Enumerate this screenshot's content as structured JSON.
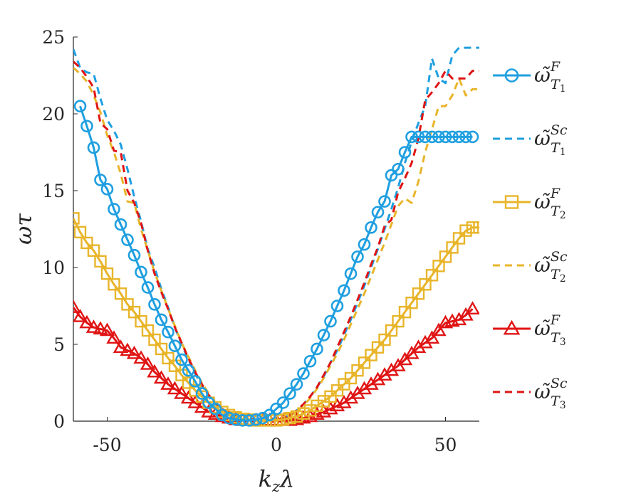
{
  "chart_data": {
    "type": "line",
    "title": "",
    "xlabel": "k_z λ",
    "xlabel_parts": {
      "main": "k",
      "sub": "z",
      "tail": "λ"
    },
    "ylabel": "ωτ",
    "xlim": [
      -60,
      60
    ],
    "ylim": [
      0,
      25
    ],
    "xticks": [
      -50,
      0,
      50
    ],
    "yticks": [
      0,
      5,
      10,
      15,
      20,
      25
    ],
    "xtick_labels": [
      "-50",
      "0",
      "50"
    ],
    "ytick_labels": [
      "0",
      "5",
      "10",
      "15",
      "20",
      "25"
    ],
    "grid": false,
    "legend_position": "right",
    "series": [
      {
        "name": "ω̃^F_{T1}",
        "label_main": "ω̃",
        "label_sup": "F",
        "label_sub": "T",
        "label_subsub": "1",
        "color": "#1f9fe0",
        "style": "solid",
        "marker": "circle",
        "x": [
          -58,
          -56,
          -54,
          -52,
          -50,
          -48,
          -46,
          -44,
          -42,
          -40,
          -38,
          -36,
          -34,
          -32,
          -30,
          -28,
          -26,
          -24,
          -22,
          -20,
          -18,
          -16,
          -14,
          -12,
          -10,
          -8,
          -6,
          -4,
          -2,
          0,
          2,
          4,
          6,
          8,
          10,
          12,
          14,
          16,
          18,
          20,
          22,
          24,
          26,
          28,
          30,
          32,
          34,
          36,
          38,
          40,
          42,
          44,
          46,
          48,
          50,
          52,
          54,
          56,
          58
        ],
        "y": [
          20.5,
          19.2,
          17.8,
          15.7,
          15.1,
          13.8,
          12.8,
          11.8,
          10.8,
          9.7,
          8.7,
          7.6,
          6.6,
          5.8,
          4.9,
          4.0,
          3.3,
          2.6,
          1.8,
          1.2,
          0.8,
          0.4,
          0.2,
          0.1,
          0.05,
          0.05,
          0.1,
          0.2,
          0.4,
          0.8,
          1.2,
          1.8,
          2.4,
          3.1,
          3.9,
          4.7,
          5.6,
          6.5,
          7.5,
          8.5,
          9.6,
          10.7,
          11.5,
          12.6,
          13.6,
          14.3,
          16.0,
          16.4,
          17.5,
          18.5,
          18.5,
          18.5,
          18.5,
          18.5,
          18.5,
          18.5,
          18.5,
          18.5,
          18.5
        ]
      },
      {
        "name": "ω̃^Sc_{T1}",
        "label_main": "ω̃",
        "label_sup": "Sc",
        "label_sub": "T",
        "label_subsub": "1",
        "color": "#1f9fe0",
        "style": "dashed",
        "marker": "none",
        "x": [
          -60,
          -58,
          -56,
          -54,
          -52,
          -50,
          -48,
          -46,
          -44,
          -42,
          -40,
          -38,
          -36,
          -34,
          -32,
          -30,
          -28,
          -26,
          -24,
          -22,
          -20,
          -18,
          -16,
          -14,
          -12,
          -10,
          -8,
          -6,
          -4,
          -2,
          0,
          2,
          4,
          6,
          8,
          10,
          12,
          14,
          16,
          18,
          20,
          22,
          24,
          26,
          28,
          30,
          32,
          34,
          36,
          38,
          40,
          42,
          44,
          46,
          48,
          50,
          52,
          54,
          56,
          58,
          60
        ],
        "y": [
          24.2,
          23.0,
          22.7,
          22.6,
          21.0,
          19.6,
          18.9,
          18.0,
          16.4,
          14.6,
          13.0,
          11.2,
          10.0,
          8.6,
          7.4,
          6.1,
          5.0,
          4.0,
          3.1,
          2.3,
          1.6,
          1.1,
          0.7,
          0.4,
          0.2,
          0.1,
          0.05,
          0.05,
          0.05,
          0.05,
          0.05,
          0.2,
          0.4,
          0.7,
          1.1,
          1.6,
          2.2,
          2.9,
          3.8,
          4.6,
          5.6,
          6.6,
          7.7,
          8.8,
          10.0,
          11.2,
          12.5,
          13.8,
          15.2,
          16.8,
          18.2,
          19.4,
          20.5,
          23.6,
          22.3,
          22.0,
          23.8,
          24.3,
          24.3,
          24.3,
          24.3
        ]
      },
      {
        "name": "ω̃^F_{T2}",
        "label_main": "ω̃",
        "label_sup": "F",
        "label_sub": "T",
        "label_subsub": "2",
        "color": "#e8b52a",
        "style": "solid",
        "marker": "square",
        "x": [
          -60,
          -58,
          -56,
          -54,
          -52,
          -50,
          -48,
          -46,
          -44,
          -42,
          -40,
          -38,
          -36,
          -34,
          -32,
          -30,
          -28,
          -26,
          -24,
          -22,
          -20,
          -18,
          -16,
          -14,
          -12,
          -10,
          -8,
          -6,
          -4,
          -2,
          0,
          2,
          4,
          6,
          8,
          10,
          12,
          14,
          16,
          18,
          20,
          22,
          24,
          26,
          28,
          30,
          32,
          34,
          36,
          38,
          40,
          42,
          44,
          46,
          48,
          50,
          52,
          54,
          56,
          58,
          60
        ],
        "y": [
          13.2,
          12.3,
          11.6,
          11.1,
          10.4,
          9.6,
          8.9,
          8.3,
          7.6,
          7.1,
          6.5,
          5.9,
          5.3,
          4.7,
          4.1,
          3.6,
          3.0,
          2.5,
          2.0,
          1.6,
          1.2,
          0.9,
          0.6,
          0.4,
          0.25,
          0.15,
          0.1,
          0.05,
          0.05,
          0.05,
          0.05,
          0.1,
          0.2,
          0.3,
          0.5,
          0.7,
          1.0,
          1.3,
          1.6,
          2.0,
          2.4,
          2.8,
          3.3,
          3.8,
          4.3,
          4.8,
          5.3,
          5.9,
          6.5,
          7.1,
          7.7,
          8.3,
          8.9,
          9.5,
          10.1,
          10.7,
          11.3,
          11.9,
          12.4,
          12.6,
          12.6
        ]
      },
      {
        "name": "ω̃^Sc_{T2}",
        "label_main": "ω̃",
        "label_sup": "Sc",
        "label_sub": "T",
        "label_subsub": "2",
        "color": "#e8b52a",
        "style": "dashed",
        "marker": "none",
        "x": [
          -60,
          -58,
          -56,
          -54,
          -52,
          -50,
          -48,
          -46,
          -44,
          -42,
          -40,
          -38,
          -36,
          -34,
          -32,
          -30,
          -28,
          -26,
          -24,
          -22,
          -20,
          -18,
          -16,
          -14,
          -12,
          -10,
          -8,
          -6,
          -4,
          -2,
          0,
          2,
          4,
          6,
          8,
          10,
          12,
          14,
          16,
          18,
          20,
          22,
          24,
          26,
          28,
          30,
          32,
          34,
          36,
          38,
          40,
          42,
          44,
          46,
          48,
          50,
          52,
          54,
          56,
          58,
          60
        ],
        "y": [
          23.0,
          22.6,
          22.1,
          21.2,
          20.1,
          18.6,
          17.5,
          16.1,
          14.3,
          14.2,
          12.5,
          11.1,
          9.7,
          8.5,
          7.3,
          6.2,
          5.1,
          4.2,
          3.3,
          2.5,
          1.8,
          1.2,
          0.8,
          0.5,
          0.3,
          0.15,
          0.1,
          0.05,
          0.05,
          0.05,
          0.05,
          0.1,
          0.3,
          0.6,
          1.0,
          1.5,
          2.1,
          2.8,
          3.6,
          4.4,
          5.3,
          6.3,
          7.3,
          8.3,
          9.4,
          10.5,
          11.6,
          12.8,
          14.0,
          14.5,
          14.2,
          15.6,
          17.5,
          19.0,
          20.5,
          20.5,
          21.2,
          22.3,
          21.2,
          21.6,
          21.6
        ]
      },
      {
        "name": "ω̃^F_{T3}",
        "label_main": "ω̃",
        "label_sup": "F",
        "label_sub": "T",
        "label_subsub": "3",
        "color": "#e01414",
        "style": "solid",
        "marker": "triangle",
        "x": [
          -60,
          -58,
          -56,
          -54,
          -52,
          -50,
          -48,
          -46,
          -44,
          -42,
          -40,
          -38,
          -36,
          -34,
          -32,
          -30,
          -28,
          -26,
          -24,
          -22,
          -20,
          -18,
          -16,
          -14,
          -12,
          -10,
          -8,
          -6,
          -4,
          -2,
          0,
          2,
          4,
          6,
          8,
          10,
          12,
          14,
          16,
          18,
          20,
          22,
          24,
          26,
          28,
          30,
          32,
          34,
          36,
          38,
          40,
          42,
          44,
          46,
          48,
          50,
          52,
          54,
          56,
          58
        ],
        "y": [
          7.4,
          6.8,
          6.4,
          6.1,
          6.0,
          5.9,
          5.4,
          4.8,
          4.6,
          4.4,
          4.1,
          3.7,
          3.2,
          2.8,
          2.4,
          2.1,
          1.8,
          1.5,
          1.2,
          0.9,
          0.6,
          0.45,
          0.3,
          0.2,
          0.1,
          0.05,
          0.05,
          0.05,
          0.05,
          0.05,
          0.05,
          0.05,
          0.05,
          0.1,
          0.2,
          0.3,
          0.45,
          0.6,
          0.8,
          1.0,
          1.2,
          1.5,
          1.8,
          2.1,
          2.4,
          2.7,
          3.0,
          3.3,
          3.6,
          4.0,
          4.4,
          4.8,
          5.1,
          5.4,
          5.9,
          6.4,
          6.5,
          6.6,
          6.9,
          7.3
        ]
      },
      {
        "name": "ω̃^Sc_{T3}",
        "label_main": "ω̃",
        "label_sup": "Sc",
        "label_sub": "T",
        "label_subsub": "3",
        "color": "#e01414",
        "style": "dashed",
        "marker": "none",
        "x": [
          -60,
          -58,
          -56,
          -54,
          -52,
          -50,
          -48,
          -46,
          -44,
          -42,
          -40,
          -38,
          -36,
          -34,
          -32,
          -30,
          -28,
          -26,
          -24,
          -22,
          -20,
          -18,
          -16,
          -14,
          -12,
          -10,
          -8,
          -6,
          -4,
          -2,
          0,
          2,
          4,
          6,
          8,
          10,
          12,
          14,
          16,
          18,
          20,
          22,
          24,
          26,
          28,
          30,
          32,
          34,
          36,
          38,
          40,
          42,
          44,
          46,
          48,
          50,
          52,
          54,
          56,
          58,
          60
        ],
        "y": [
          23.4,
          23.0,
          22.4,
          21.7,
          19.4,
          19.0,
          17.6,
          17.5,
          15.0,
          14.2,
          12.9,
          11.1,
          9.6,
          8.4,
          7.3,
          6.1,
          5.1,
          4.1,
          3.2,
          2.4,
          1.7,
          1.2,
          0.8,
          0.5,
          0.3,
          0.15,
          0.1,
          0.05,
          0.05,
          0.05,
          0.05,
          0.2,
          0.4,
          0.7,
          1.1,
          1.6,
          2.2,
          3.0,
          3.8,
          4.8,
          5.8,
          6.8,
          7.9,
          9.0,
          10.2,
          11.3,
          12.7,
          13.1,
          14.9,
          15.8,
          16.8,
          18.4,
          20.9,
          21.4,
          22.0,
          22.8,
          22.3,
          22.3,
          22.3,
          22.8,
          22.8
        ]
      }
    ]
  }
}
